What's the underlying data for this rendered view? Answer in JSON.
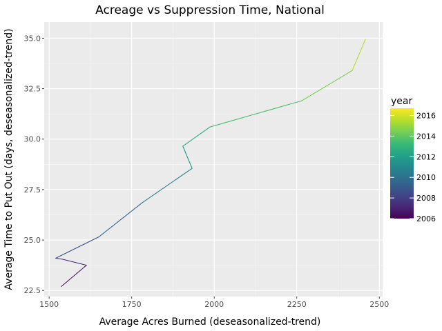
{
  "chart_data": {
    "type": "line",
    "title": "Acreage vs Suppression Time, National",
    "xlabel": "Average Acres Burned (deseasonalized-trend)",
    "ylabel": "Average Time to Put Out (days, deseasonalized-trend)",
    "xlim": [
      1485,
      2510
    ],
    "ylim": [
      22.2,
      35.8
    ],
    "x_ticks": [
      1500,
      1750,
      2000,
      2250,
      2500
    ],
    "x_tick_labels": [
      "1500",
      "1750",
      "2000",
      "2250",
      "2500"
    ],
    "y_ticks": [
      22.5,
      25.0,
      27.5,
      30.0,
      32.5,
      35.0
    ],
    "y_tick_labels": [
      "22.5",
      "25.0",
      "27.5",
      "30.0",
      "32.5",
      "35.0"
    ],
    "grid": true,
    "color_scale": {
      "name": "year",
      "palette": "viridis",
      "min": 2006,
      "max": 2016.7,
      "ticks": [
        2006,
        2008,
        2010,
        2012,
        2014,
        2016
      ],
      "tick_labels": [
        "2006",
        "2008",
        "2010",
        "2012",
        "2014",
        "2016"
      ],
      "stops": [
        "#440154",
        "#482878",
        "#3e4989",
        "#31688e",
        "#26828e",
        "#1f9e89",
        "#35b779",
        "#6ece58",
        "#b5de2b",
        "#fde725"
      ]
    },
    "series": [
      {
        "points": [
          {
            "x": 1537,
            "y": 22.7,
            "year": 2006.0
          },
          {
            "x": 1613,
            "y": 23.75,
            "year": 2007.0
          },
          {
            "x": 1540,
            "y": 24.05,
            "year": 2007.5
          },
          {
            "x": 1520,
            "y": 24.1,
            "year": 2008.0
          },
          {
            "x": 1650,
            "y": 25.15,
            "year": 2009.0
          },
          {
            "x": 1782,
            "y": 26.85,
            "year": 2010.0
          },
          {
            "x": 1933,
            "y": 28.55,
            "year": 2011.0
          },
          {
            "x": 1905,
            "y": 29.65,
            "year": 2012.0
          },
          {
            "x": 1987,
            "y": 30.6,
            "year": 2013.0
          },
          {
            "x": 2265,
            "y": 31.9,
            "year": 2014.0
          },
          {
            "x": 2418,
            "y": 33.4,
            "year": 2015.0
          },
          {
            "x": 2458,
            "y": 34.95,
            "year": 2016.0
          }
        ]
      }
    ]
  }
}
